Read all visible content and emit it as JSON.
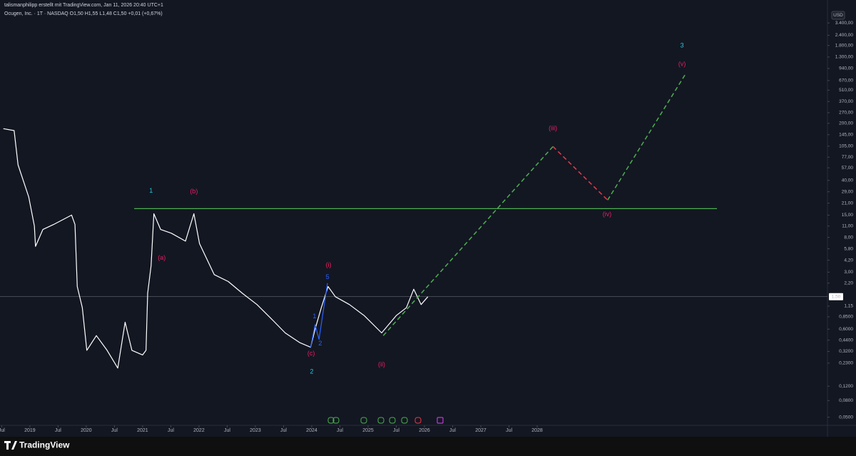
{
  "header": {
    "author": "talismanphilipp erstellt mit TradingView.com, Jan 11, 2026 20:40 UTC+1",
    "symbol": "Ocugen, Inc. · 1T · NASDAQ  O1,50 H1,55 L1,48 C1,50 +0,01 (+0,67%)",
    "currency": "USD",
    "last_price_label": "1,50",
    "footer": "TradingView"
  },
  "chart_data": {
    "type": "line",
    "log_scale": true,
    "grid": false,
    "xlim": [
      2018.47,
      2033.15
    ],
    "ylim": [
      0.03,
      4900
    ],
    "last_price": 1.5,
    "xticks": [
      {
        "value": 2018.5,
        "label": "Jul"
      },
      2019,
      {
        "value": 2019.5,
        "label": "Jul"
      },
      2020,
      {
        "value": 2020.5,
        "label": "Jul"
      },
      2021,
      {
        "value": 2021.5,
        "label": "Jul"
      },
      2022,
      {
        "value": 2022.5,
        "label": "Jul"
      },
      2023,
      {
        "value": 2023.5,
        "label": "Jul"
      },
      2024,
      {
        "value": 2024.5,
        "label": "Jul"
      },
      2025,
      {
        "value": 2025.5,
        "label": "Jul"
      },
      2026,
      {
        "value": 2026.5,
        "label": "Jul"
      },
      2027,
      {
        "value": 2027.5,
        "label": "Jul"
      },
      2028
    ],
    "yticks": [
      {
        "value": 3400,
        "label": "3.400,00"
      },
      {
        "value": 2400,
        "label": "2.400,00"
      },
      {
        "value": 1800,
        "label": "1.800,00"
      },
      {
        "value": 1300,
        "label": "1.300,00"
      },
      {
        "value": 940,
        "label": "940,00"
      },
      {
        "value": 670,
        "label": "670,00"
      },
      {
        "value": 510,
        "label": "510,00"
      },
      {
        "value": 370,
        "label": "370,00"
      },
      {
        "value": 270,
        "label": "270,00"
      },
      {
        "value": 200,
        "label": "200,00"
      },
      {
        "value": 145,
        "label": "145,00"
      },
      {
        "value": 105,
        "label": "105,00"
      },
      {
        "value": 77,
        "label": "77,00"
      },
      {
        "value": 57,
        "label": "57,00"
      },
      {
        "value": 40,
        "label": "40,00"
      },
      {
        "value": 29,
        "label": "29,00"
      },
      {
        "value": 21,
        "label": "21,00"
      },
      {
        "value": 15,
        "label": "15,00"
      },
      {
        "value": 11,
        "label": "11,00"
      },
      {
        "value": 8,
        "label": "8,00"
      },
      {
        "value": 5.8,
        "label": "5,80"
      },
      {
        "value": 4.2,
        "label": "4,20"
      },
      {
        "value": 3,
        "label": "3,00"
      },
      {
        "value": 2.2,
        "label": "2,20"
      },
      {
        "value": 1.15,
        "label": "1,15"
      },
      {
        "value": 0.85,
        "label": "0,8500"
      },
      {
        "value": 0.6,
        "label": "0,6000"
      },
      {
        "value": 0.44,
        "label": "0,4400"
      },
      {
        "value": 0.32,
        "label": "0,3200"
      },
      {
        "value": 0.23,
        "label": "0,2300"
      },
      {
        "value": 0.12,
        "label": "0,1200"
      },
      {
        "value": 0.08,
        "label": "0,0800"
      },
      {
        "value": 0.05,
        "label": "0,0500"
      }
    ],
    "series": [
      {
        "color": "#ffffff",
        "dash": false,
        "x": [
          2018.53,
          2018.72,
          2018.79,
          2018.98,
          2019.08,
          2019.1,
          2019.23,
          2019.42,
          2019.74,
          2019.8,
          2019.84,
          2019.93,
          2020.01,
          2020.18,
          2020.37,
          2020.56,
          2020.69,
          2020.81,
          2021.0,
          2021.06,
          2021.09,
          2021.15,
          2021.2,
          2021.32,
          2021.51,
          2021.76,
          2021.91,
          2022.01,
          2022.27,
          2022.52,
          2022.77,
          2023.03,
          2023.28,
          2023.53,
          2023.79,
          2023.98,
          2024.06,
          2024.17,
          2024.29,
          2024.42,
          2024.67,
          2024.93,
          2025.24,
          2025.5,
          2025.68,
          2025.81,
          2025.94,
          2026.06
        ],
        "values": [
          172,
          163,
          62,
          25,
          11,
          6.2,
          10,
          11.5,
          15,
          11.5,
          2.0,
          1.1,
          0.33,
          0.5,
          0.33,
          0.2,
          0.73,
          0.33,
          0.29,
          0.33,
          1.65,
          3.6,
          15.6,
          10,
          9.0,
          7.2,
          15.6,
          6.7,
          2.8,
          2.3,
          1.65,
          1.2,
          0.81,
          0.54,
          0.41,
          0.36,
          0.6,
          1.1,
          2.0,
          1.5,
          1.2,
          0.88,
          0.54,
          0.88,
          1.1,
          1.85,
          1.2,
          1.5
        ]
      },
      {
        "color": "#2962ff",
        "dash": false,
        "x": [
          2023.98,
          2024.06,
          2024.13,
          2024.28
        ],
        "values": [
          0.36,
          0.68,
          0.45,
          2.2
        ]
      },
      {
        "color": "#4caf50",
        "dash": true,
        "x": [
          2025.27,
          2028.28
        ],
        "values": [
          0.5,
          104
        ]
      },
      {
        "color": "#f23645",
        "dash": true,
        "x": [
          2028.28,
          2029.25
        ],
        "values": [
          104,
          22.9
        ]
      },
      {
        "color": "#4caf50",
        "dash": true,
        "x": [
          2029.25,
          2030.62
        ],
        "values": [
          22.9,
          780
        ]
      },
      {
        "color": "#4caf50",
        "dash": false,
        "x": [
          2020.85,
          2031.19
        ],
        "values": [
          18,
          18
        ]
      }
    ],
    "annotations": [
      {
        "text": "1",
        "x": 2021.15,
        "y": 29.7,
        "color": "#26c6da"
      },
      {
        "text": "(b)",
        "x": 2021.91,
        "y": 29,
        "color": "#e91e63"
      },
      {
        "text": "(a)",
        "x": 2021.34,
        "y": 4.47,
        "color": "#e91e63"
      },
      {
        "text": "(c)",
        "x": 2023.99,
        "y": 0.3,
        "color": "#e91e63"
      },
      {
        "text": "2",
        "x": 2024.0,
        "y": 0.18,
        "color": "#26c6da"
      },
      {
        "text": "(i)",
        "x": 2024.3,
        "y": 3.65,
        "color": "#e91e63"
      },
      {
        "text": "5",
        "x": 2024.28,
        "y": 2.6,
        "color": "#2962ff"
      },
      {
        "text": "1",
        "x": 2024.05,
        "y": 0.855,
        "color": "#2962ff"
      },
      {
        "text": "2",
        "x": 2024.15,
        "y": 0.4,
        "color": "#2962ff"
      },
      {
        "text": "(ii)",
        "x": 2025.24,
        "y": 0.22,
        "color": "#e91e63"
      },
      {
        "text": "(iii)",
        "x": 2028.28,
        "y": 172,
        "color": "#e91e63"
      },
      {
        "text": "(iv)",
        "x": 2029.24,
        "y": 15.3,
        "color": "#e91e63"
      },
      {
        "text": "(v)",
        "x": 2030.57,
        "y": 1054,
        "color": "#e91e63"
      },
      {
        "text": "3",
        "x": 2030.57,
        "y": 1782,
        "color": "#26c6da"
      }
    ]
  }
}
